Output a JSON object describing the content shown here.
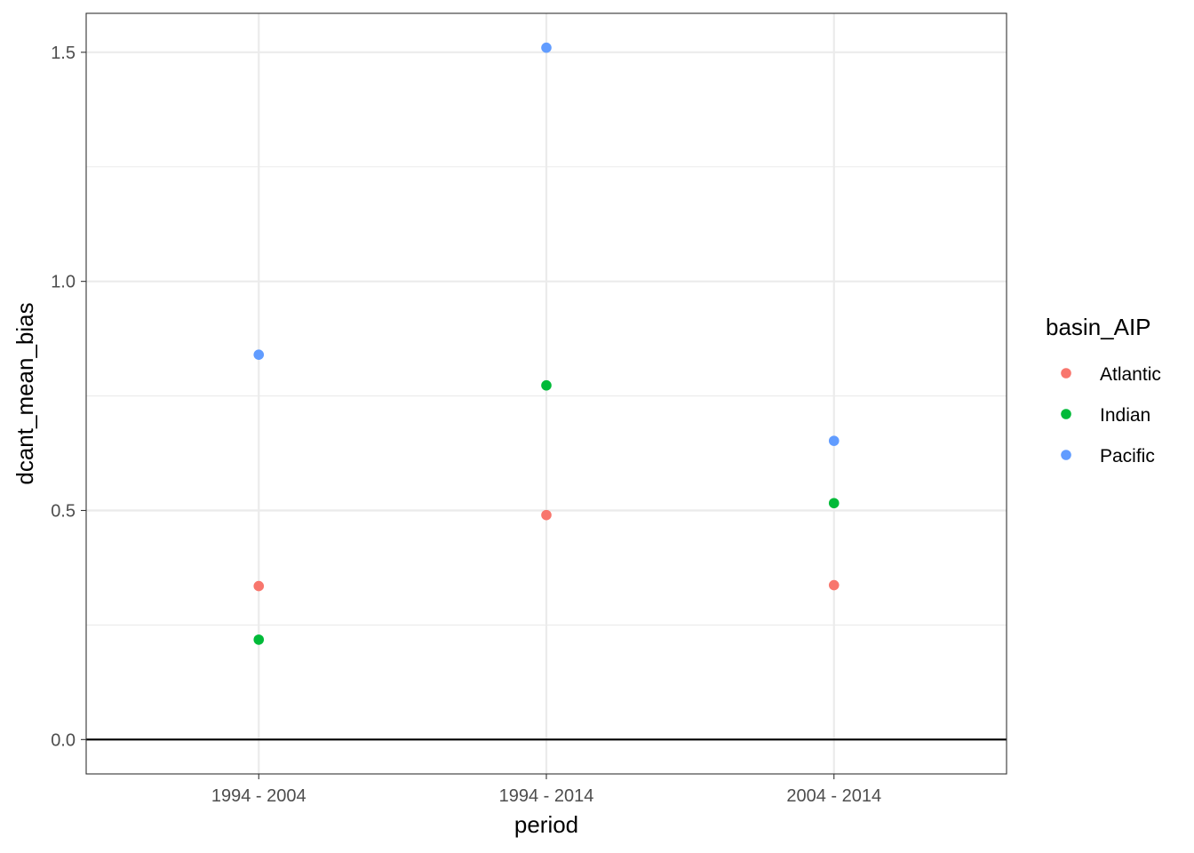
{
  "chart_data": {
    "type": "scatter",
    "xlabel": "period",
    "ylabel": "dcant_mean_bias",
    "categories": [
      "1994 - 2004",
      "1994 - 2014",
      "2004 - 2014"
    ],
    "ylim": [
      -0.075,
      1.585
    ],
    "y_ticks": [
      0.0,
      0.5,
      1.0,
      1.5
    ],
    "y_tick_labels": [
      "0.0",
      "0.5",
      "1.0",
      "1.5"
    ],
    "grid": true,
    "hline": 0,
    "legend": {
      "title": "basin_AIP",
      "position": "right"
    },
    "series": [
      {
        "name": "Atlantic",
        "color": "#F8766D",
        "values": [
          0.335,
          0.49,
          0.337
        ]
      },
      {
        "name": "Indian",
        "color": "#00BA38",
        "values": [
          0.218,
          0.773,
          0.516
        ]
      },
      {
        "name": "Pacific",
        "color": "#619CFF",
        "values": [
          0.84,
          1.51,
          0.652
        ]
      }
    ]
  }
}
